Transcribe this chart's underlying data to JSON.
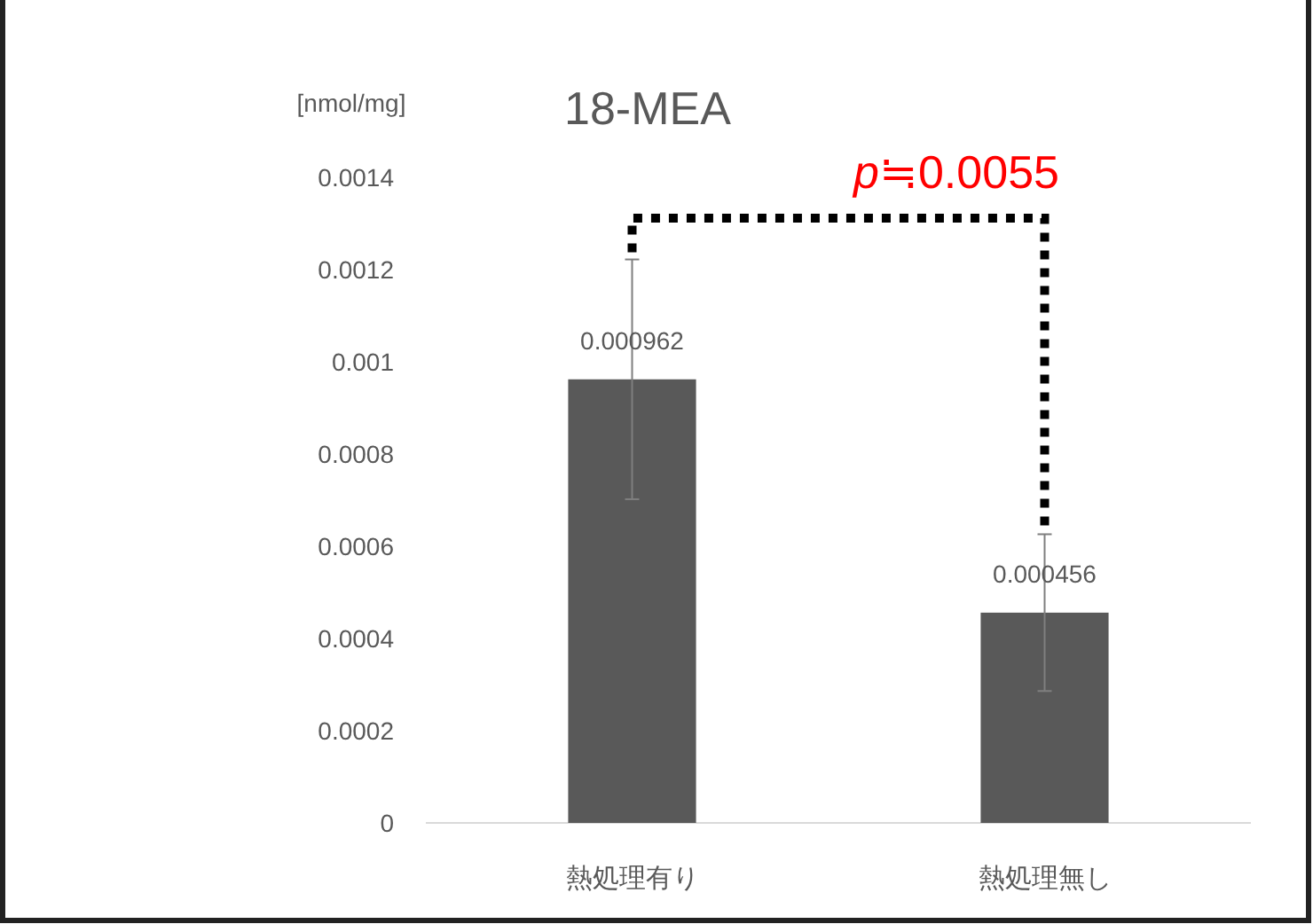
{
  "chart_data": {
    "type": "bar",
    "title": "18-MEA",
    "ylabel": "[nmol/mg]",
    "categories": [
      "熱処理有り",
      "熱処理無し"
    ],
    "values": [
      0.000962,
      0.000456
    ],
    "color": "#595959",
    "errors": [
      0.00026,
      0.00017
    ],
    "data_labels": true,
    "ylim": [
      0,
      0.0014
    ],
    "yticks": [
      0,
      0.0002,
      0.0004,
      0.0006,
      0.0008,
      0.001,
      0.0012,
      0.0014
    ],
    "annotations": [
      "p≒0.0055"
    ]
  }
}
